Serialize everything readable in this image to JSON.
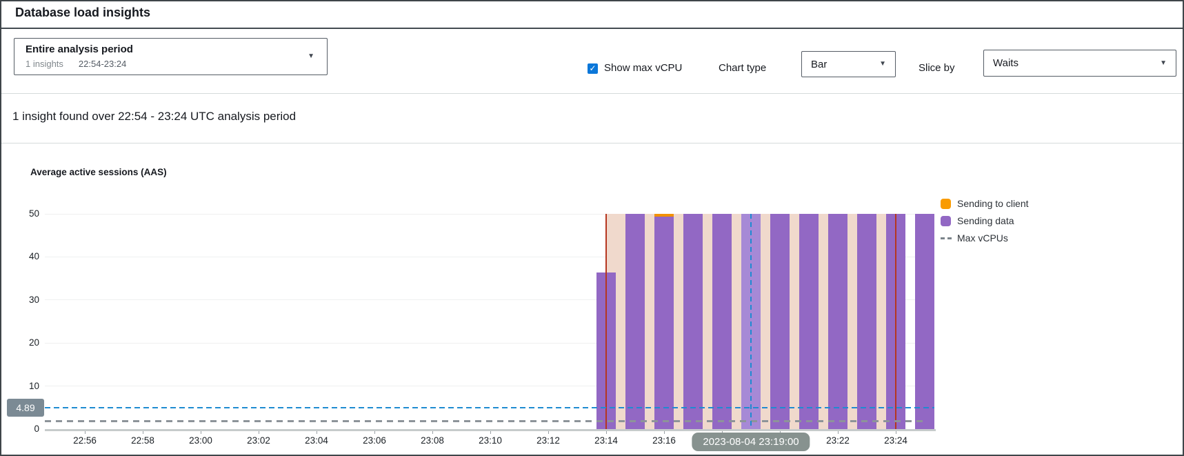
{
  "header": {
    "title": "Database load insights"
  },
  "period_dropdown": {
    "title": "Entire analysis period",
    "insights_count": "1 insights",
    "range": "22:54-23:24"
  },
  "controls": {
    "show_max_vcpu_label": "Show max vCPU",
    "show_max_vcpu_checked": true,
    "chart_type_label": "Chart type",
    "chart_type_value": "Bar",
    "slice_by_label": "Slice by",
    "slice_by_value": "Waits"
  },
  "insight_summary": "1 insight found over 22:54 - 23:24 UTC analysis period",
  "chart_data": {
    "type": "bar",
    "title": "Average active sessions (AAS)",
    "ylim": [
      0,
      50
    ],
    "yticks": [
      0,
      10,
      20,
      30,
      40,
      50
    ],
    "xticks": [
      "22:56",
      "22:58",
      "23:00",
      "23:02",
      "23:04",
      "23:06",
      "23:08",
      "23:10",
      "23:12",
      "23:14",
      "23:16",
      "23:18",
      "23:20",
      "23:22",
      "23:24"
    ],
    "x_range": [
      "22:54",
      "23:26"
    ],
    "grid": true,
    "legend_position": "right",
    "bars": [
      {
        "time": "23:14",
        "sending_data": 36.3,
        "sending_to_client": 0,
        "clipped": false,
        "highlight": false
      },
      {
        "time": "23:15",
        "sending_data": 50,
        "sending_to_client": 0,
        "clipped": true,
        "highlight": false
      },
      {
        "time": "23:16",
        "sending_data": 49.4,
        "sending_to_client": 0.6,
        "clipped": true,
        "highlight": false
      },
      {
        "time": "23:17",
        "sending_data": 50,
        "sending_to_client": 0,
        "clipped": true,
        "highlight": false
      },
      {
        "time": "23:18",
        "sending_data": 50,
        "sending_to_client": 0,
        "clipped": true,
        "highlight": false
      },
      {
        "time": "23:19",
        "sending_data": 50,
        "sending_to_client": 0,
        "clipped": true,
        "highlight": true
      },
      {
        "time": "23:20",
        "sending_data": 50,
        "sending_to_client": 0,
        "clipped": true,
        "highlight": false
      },
      {
        "time": "23:21",
        "sending_data": 50,
        "sending_to_client": 0,
        "clipped": true,
        "highlight": false
      },
      {
        "time": "23:22",
        "sending_data": 50,
        "sending_to_client": 0,
        "clipped": true,
        "highlight": false
      },
      {
        "time": "23:23",
        "sending_data": 50,
        "sending_to_client": 0,
        "clipped": true,
        "highlight": false
      },
      {
        "time": "23:24",
        "sending_data": 50,
        "sending_to_client": 0,
        "clipped": true,
        "highlight": false
      },
      {
        "time": "23:25",
        "sending_data": 50,
        "sending_to_client": 0,
        "clipped": true,
        "highlight": false
      }
    ],
    "legend": [
      {
        "label": "Sending to client",
        "type": "box",
        "color": "#f99b00"
      },
      {
        "label": "Sending data",
        "type": "box",
        "color": "#9268c4"
      },
      {
        "label": "Max vCPUs",
        "type": "dash",
        "color": "#7b848a"
      }
    ],
    "insight_region": {
      "start": "23:14",
      "end": "23:24",
      "color": "#f0d9cc",
      "edge_color": "#b5361f"
    },
    "max_vcpus_line": {
      "label": "Max vCPUs",
      "value": 2,
      "color": "#8d9499"
    },
    "aas_marker": {
      "label": "4.89",
      "value": 4.89,
      "color": "#1e8bd1",
      "badge_color": "#7b8a94"
    },
    "crosshair": {
      "time": "23:19",
      "tooltip": "2023-08-04 23:19:00",
      "color": "#1e8bd1",
      "tooltip_color": "#87928f"
    },
    "colors": {
      "bar_purple": "#9268c4",
      "bar_purple_highlight": "#a689d6",
      "bar_orange": "#f29100",
      "axis_line": "#c6cbcb",
      "gridline": "#eff0f0"
    }
  }
}
